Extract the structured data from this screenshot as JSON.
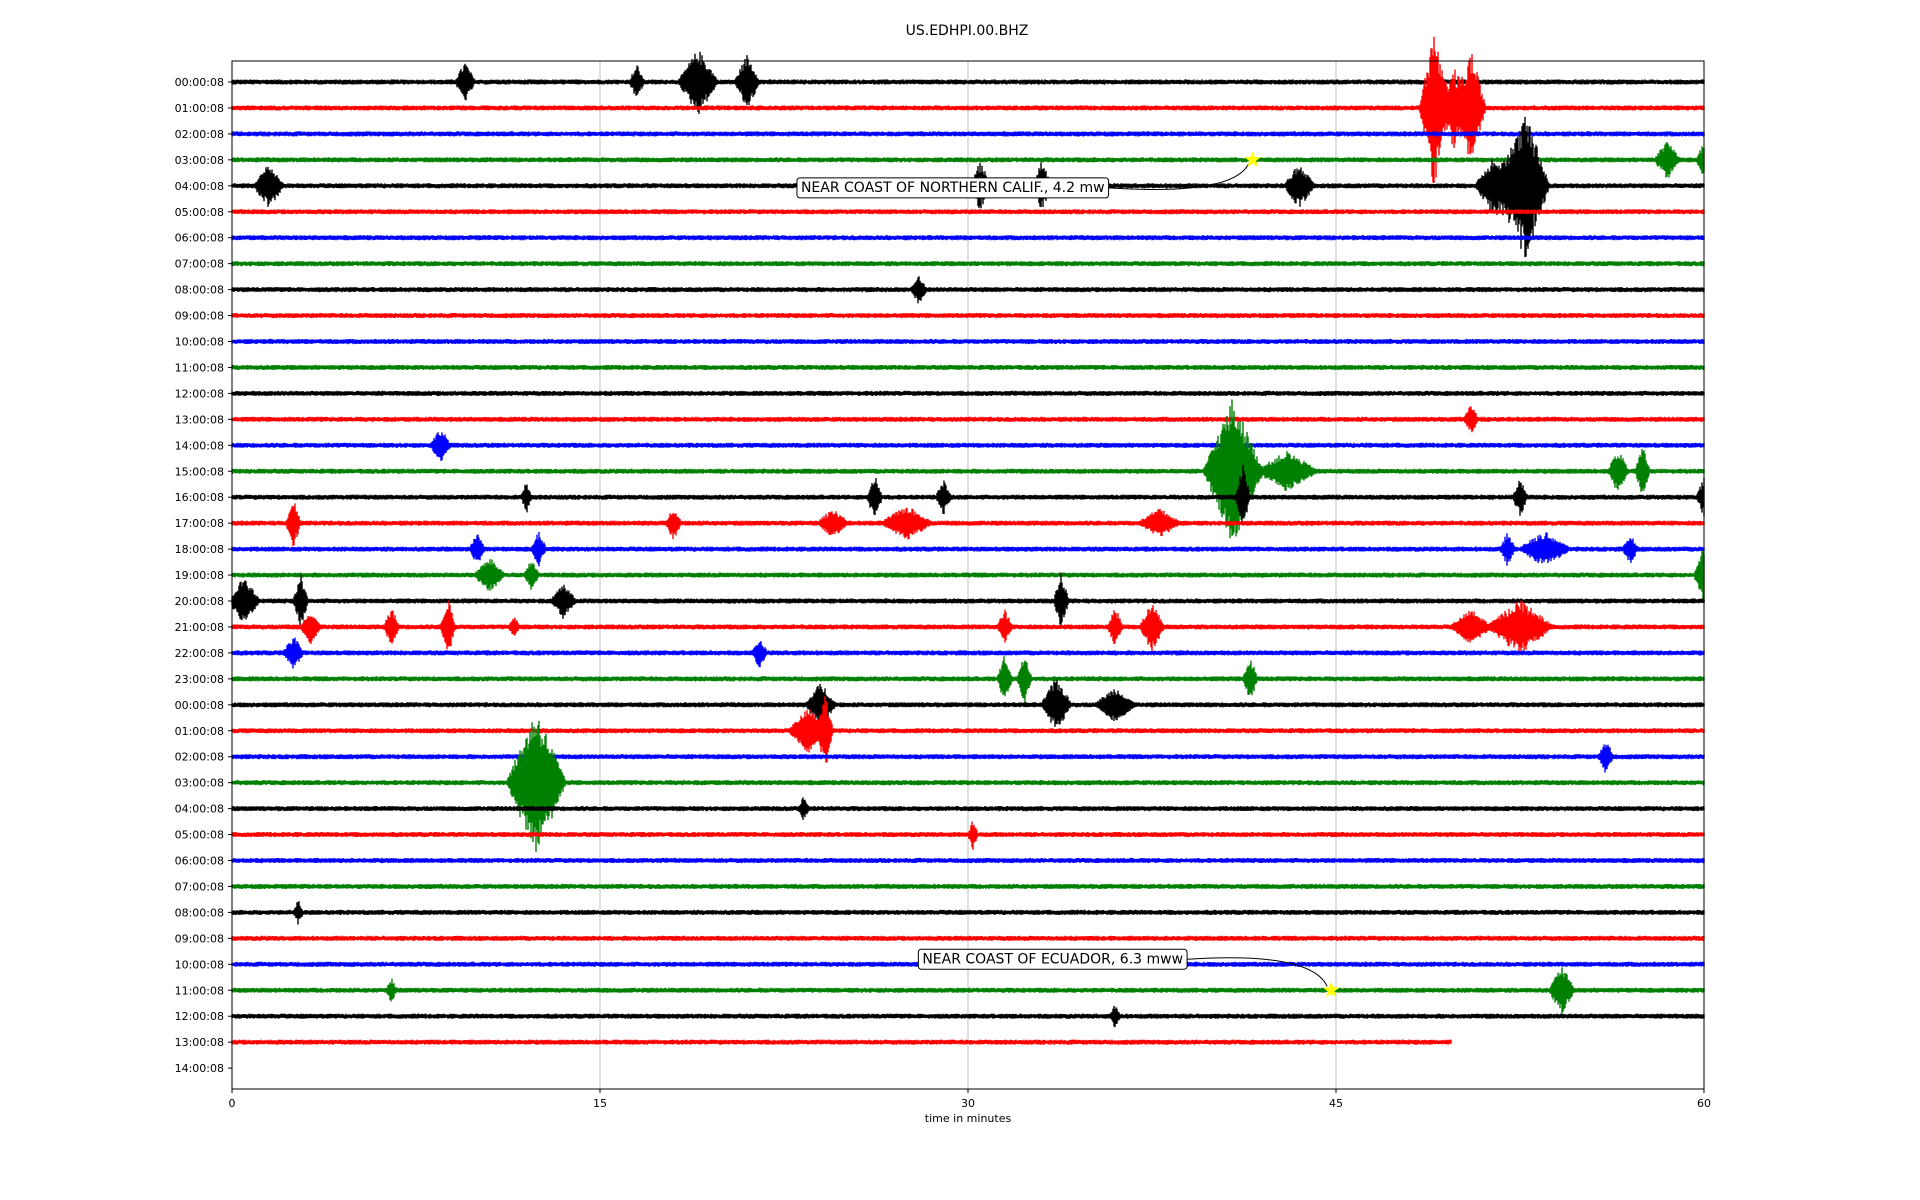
{
  "chart_data": {
    "type": "line",
    "title": "US.EDHPI.00.BHZ",
    "xlabel": "time in minutes",
    "ylabel": "",
    "xlim": [
      0,
      60
    ],
    "x_ticks": [
      "0",
      "15",
      "30",
      "45",
      "60"
    ],
    "x_tick_values": [
      0,
      15,
      30,
      45,
      60
    ],
    "grid": "vertical",
    "row_colors": [
      "#000000",
      "#ff0000",
      "#0000ff",
      "#008000"
    ],
    "row_labels": [
      "00:00:08",
      "01:00:08",
      "02:00:08",
      "03:00:08",
      "04:00:08",
      "05:00:08",
      "06:00:08",
      "07:00:08",
      "08:00:08",
      "09:00:08",
      "10:00:08",
      "11:00:08",
      "12:00:08",
      "13:00:08",
      "14:00:08",
      "15:00:08",
      "16:00:08",
      "17:00:08",
      "18:00:08",
      "19:00:08",
      "20:00:08",
      "21:00:08",
      "22:00:08",
      "23:00:08",
      "00:00:08",
      "01:00:08",
      "02:00:08",
      "03:00:08",
      "04:00:08",
      "05:00:08",
      "06:00:08",
      "07:00:08",
      "08:00:08",
      "09:00:08",
      "10:00:08",
      "11:00:08",
      "12:00:08",
      "13:00:08",
      "14:00:08"
    ],
    "series": [
      {
        "row": 0,
        "end_min": 60,
        "bursts": [
          [
            9.5,
            0.4,
            0.7
          ],
          [
            19,
            0.8,
            1.2
          ],
          [
            21,
            0.5,
            1.0
          ],
          [
            16.5,
            0.3,
            0.6
          ]
        ]
      },
      {
        "row": 1,
        "end_min": 60,
        "bursts": [
          [
            49,
            0.6,
            3.0
          ],
          [
            50.5,
            0.6,
            2.2
          ],
          [
            49.8,
            0.4,
            1.6
          ]
        ]
      },
      {
        "row": 2,
        "end_min": 60,
        "bursts": []
      },
      {
        "row": 3,
        "end_min": 60,
        "bursts": [
          [
            58.5,
            0.5,
            0.7
          ],
          [
            60,
            0.3,
            0.6
          ]
        ]
      },
      {
        "row": 4,
        "end_min": 60,
        "bursts": [
          [
            1.5,
            0.6,
            0.8
          ],
          [
            30.5,
            0.4,
            0.9
          ],
          [
            33,
            0.4,
            0.9
          ],
          [
            43.5,
            0.6,
            0.8
          ],
          [
            52.7,
            1.0,
            2.8
          ],
          [
            51.5,
            0.8,
            1.2
          ]
        ]
      },
      {
        "row": 5,
        "end_min": 60,
        "bursts": []
      },
      {
        "row": 6,
        "end_min": 60,
        "bursts": []
      },
      {
        "row": 7,
        "end_min": 60,
        "bursts": []
      },
      {
        "row": 8,
        "end_min": 60,
        "bursts": [
          [
            28,
            0.3,
            0.5
          ]
        ]
      },
      {
        "row": 9,
        "end_min": 60,
        "bursts": []
      },
      {
        "row": 10,
        "end_min": 60,
        "bursts": []
      },
      {
        "row": 11,
        "end_min": 60,
        "bursts": []
      },
      {
        "row": 12,
        "end_min": 60,
        "bursts": []
      },
      {
        "row": 13,
        "end_min": 60,
        "bursts": [
          [
            50.5,
            0.3,
            0.5
          ]
        ]
      },
      {
        "row": 14,
        "end_min": 60,
        "bursts": [
          [
            8.5,
            0.4,
            0.6
          ]
        ]
      },
      {
        "row": 15,
        "end_min": 60,
        "bursts": [
          [
            40.8,
            1.2,
            2.8
          ],
          [
            43,
            1.2,
            0.7
          ],
          [
            56.5,
            0.4,
            0.8
          ],
          [
            57.5,
            0.3,
            0.9
          ]
        ]
      },
      {
        "row": 16,
        "end_min": 60,
        "bursts": [
          [
            12,
            0.2,
            0.6
          ],
          [
            26.2,
            0.3,
            0.9
          ],
          [
            29,
            0.3,
            0.6
          ],
          [
            41.2,
            0.3,
            1.2
          ],
          [
            52.5,
            0.3,
            0.7
          ],
          [
            60,
            0.3,
            0.7
          ]
        ]
      },
      {
        "row": 17,
        "end_min": 60,
        "bursts": [
          [
            2.5,
            0.3,
            0.9
          ],
          [
            18,
            0.3,
            0.6
          ],
          [
            24.5,
            0.6,
            0.5
          ],
          [
            27.5,
            1.0,
            0.6
          ],
          [
            37.8,
            0.8,
            0.5
          ]
        ]
      },
      {
        "row": 18,
        "end_min": 60,
        "bursts": [
          [
            10,
            0.3,
            0.6
          ],
          [
            12.5,
            0.3,
            0.6
          ],
          [
            52,
            0.3,
            0.6
          ],
          [
            53.5,
            1.0,
            0.6
          ],
          [
            57,
            0.3,
            0.5
          ]
        ]
      },
      {
        "row": 19,
        "end_min": 60,
        "bursts": [
          [
            10.5,
            0.6,
            0.6
          ],
          [
            12.2,
            0.3,
            0.5
          ],
          [
            60,
            0.4,
            1.1
          ]
        ]
      },
      {
        "row": 20,
        "end_min": 60,
        "bursts": [
          [
            0.5,
            0.6,
            0.9
          ],
          [
            2.8,
            0.3,
            1.0
          ],
          [
            13.5,
            0.5,
            0.6
          ],
          [
            33.8,
            0.3,
            1.0
          ]
        ]
      },
      {
        "row": 21,
        "end_min": 60,
        "bursts": [
          [
            3.2,
            0.4,
            0.6
          ],
          [
            6.5,
            0.3,
            0.7
          ],
          [
            8.8,
            0.3,
            1.1
          ],
          [
            11.5,
            0.2,
            0.4
          ],
          [
            31.5,
            0.3,
            0.6
          ],
          [
            36,
            0.3,
            0.7
          ],
          [
            37.5,
            0.5,
            0.9
          ],
          [
            50.5,
            0.8,
            0.6
          ],
          [
            52.5,
            1.3,
            1.0
          ]
        ]
      },
      {
        "row": 22,
        "end_min": 60,
        "bursts": [
          [
            2.5,
            0.4,
            0.6
          ],
          [
            21.5,
            0.3,
            0.5
          ]
        ]
      },
      {
        "row": 23,
        "end_min": 60,
        "bursts": [
          [
            31.5,
            0.3,
            0.9
          ],
          [
            32.3,
            0.3,
            1.0
          ],
          [
            41.5,
            0.3,
            0.8
          ]
        ]
      },
      {
        "row": 24,
        "end_min": 60,
        "bursts": [
          [
            24,
            0.6,
            0.8
          ],
          [
            33.6,
            0.6,
            1.0
          ],
          [
            36,
            0.8,
            0.6
          ]
        ]
      },
      {
        "row": 25,
        "end_min": 60,
        "bursts": [
          [
            23.5,
            0.8,
            0.8
          ],
          [
            24.2,
            0.3,
            1.3
          ]
        ]
      },
      {
        "row": 26,
        "end_min": 60,
        "bursts": [
          [
            56,
            0.3,
            0.6
          ]
        ]
      },
      {
        "row": 27,
        "end_min": 60,
        "bursts": [
          [
            12.4,
            1.2,
            2.8
          ]
        ]
      },
      {
        "row": 28,
        "end_min": 60,
        "bursts": [
          [
            23.3,
            0.2,
            0.4
          ]
        ]
      },
      {
        "row": 29,
        "end_min": 60,
        "bursts": [
          [
            30.2,
            0.2,
            0.5
          ]
        ]
      },
      {
        "row": 30,
        "end_min": 60,
        "bursts": []
      },
      {
        "row": 31,
        "end_min": 60,
        "bursts": []
      },
      {
        "row": 32,
        "end_min": 60,
        "bursts": [
          [
            2.7,
            0.2,
            0.4
          ]
        ]
      },
      {
        "row": 33,
        "end_min": 60,
        "bursts": []
      },
      {
        "row": 34,
        "end_min": 60,
        "bursts": []
      },
      {
        "row": 35,
        "end_min": 60,
        "bursts": [
          [
            54.2,
            0.5,
            0.9
          ],
          [
            6.5,
            0.2,
            0.4
          ]
        ]
      },
      {
        "row": 36,
        "end_min": 60,
        "bursts": [
          [
            36,
            0.2,
            0.4
          ]
        ]
      },
      {
        "row": 37,
        "end_min": 49.7,
        "bursts": []
      }
    ],
    "events": [
      {
        "label": "NEAR COAST OF NORTHERN CALIF., 4.2 mw",
        "row": 3,
        "minute": 41.6
      },
      {
        "label": "NEAR COAST OF ECUADOR, 6.3 mww",
        "row": 35,
        "minute": 44.8
      }
    ]
  }
}
